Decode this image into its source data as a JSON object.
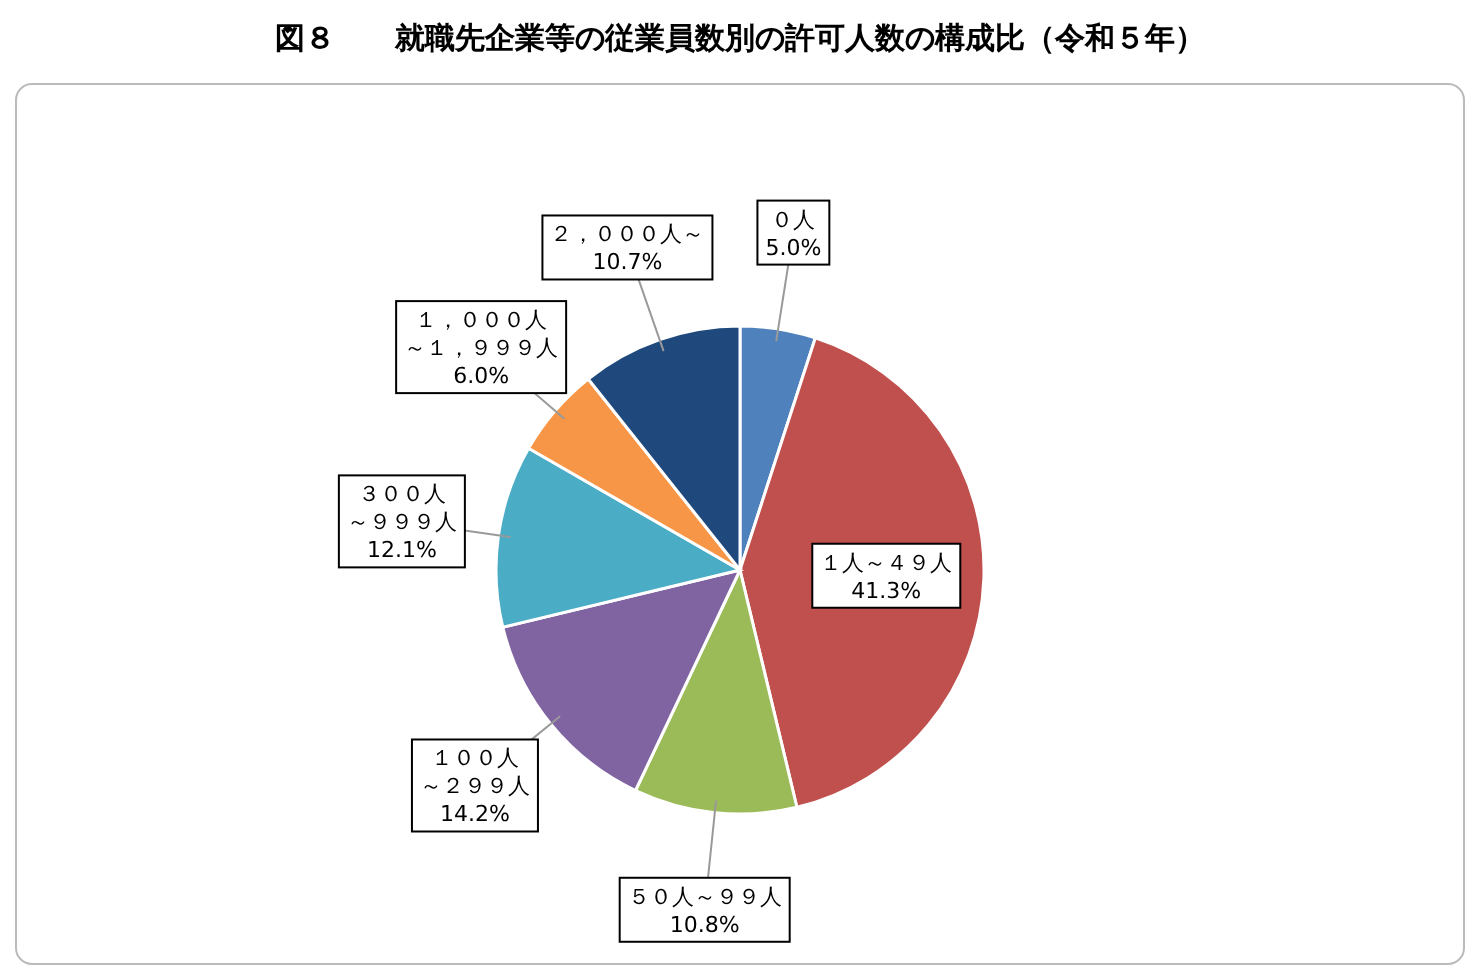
{
  "chart_data": {
    "type": "pie",
    "title": "図８　　就職先企業等の従業員数別の許可人数の構成比（令和５年）",
    "categories": [
      "０人",
      "１人～４９人",
      "５０人～９９人",
      "１００人～２９９人",
      "３００人～９９９人",
      "１，０００人～１，９９９人",
      "２，０００人～"
    ],
    "values": [
      5.0,
      41.3,
      10.8,
      14.2,
      12.1,
      6.0,
      10.7
    ],
    "colors": [
      "#4f81bd",
      "#c0504d",
      "#9bbb59",
      "#8064a2",
      "#4bacc6",
      "#f79646",
      "#1f497d"
    ],
    "value_labels": [
      "5.0%",
      "41.3%",
      "10.8%",
      "14.2%",
      "12.1%",
      "6.0%",
      "10.7%"
    ]
  }
}
